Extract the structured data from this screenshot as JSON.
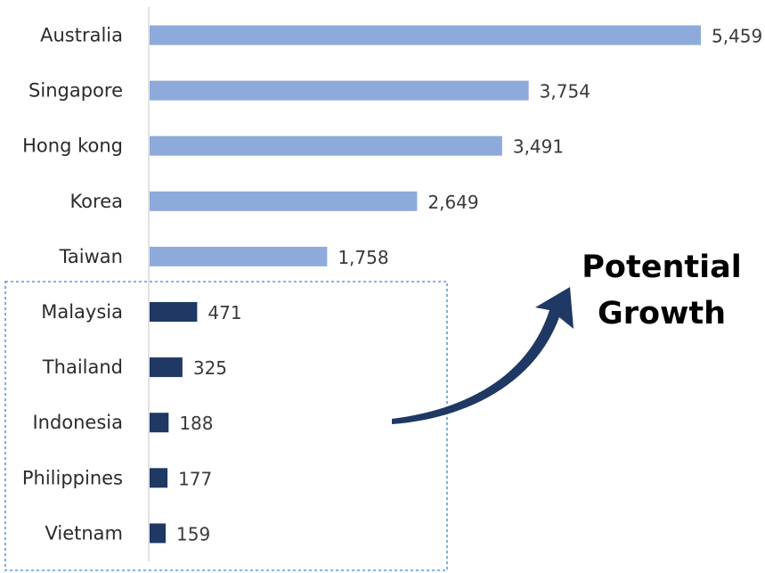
{
  "chart_data": {
    "type": "bar",
    "orientation": "horizontal",
    "categories": [
      "Australia",
      "Singapore",
      "Hong kong",
      "Korea",
      "Taiwan",
      "Malaysia",
      "Thailand",
      "Indonesia",
      "Philippines",
      "Vietnam"
    ],
    "values": [
      5459,
      3754,
      3491,
      2649,
      1758,
      471,
      325,
      188,
      177,
      159
    ],
    "value_labels": [
      "5,459",
      "3,754",
      "3,491",
      "2,649",
      "1,758",
      "471",
      "325",
      "188",
      "177",
      "159"
    ],
    "title": "",
    "xlabel": "",
    "ylabel": "",
    "xlim": [
      0,
      5459
    ],
    "grid": false,
    "legend": "none",
    "colors": {
      "developed": "#8eaadb",
      "emerging": "#1f3864"
    },
    "highlight_group": [
      "Malaysia",
      "Thailand",
      "Indonesia",
      "Philippines",
      "Vietnam"
    ]
  },
  "annotation": {
    "line1": "Potential",
    "line2": "Growth",
    "arrow_color": "#1f3864",
    "box_border_color": "#5b9bd5"
  }
}
